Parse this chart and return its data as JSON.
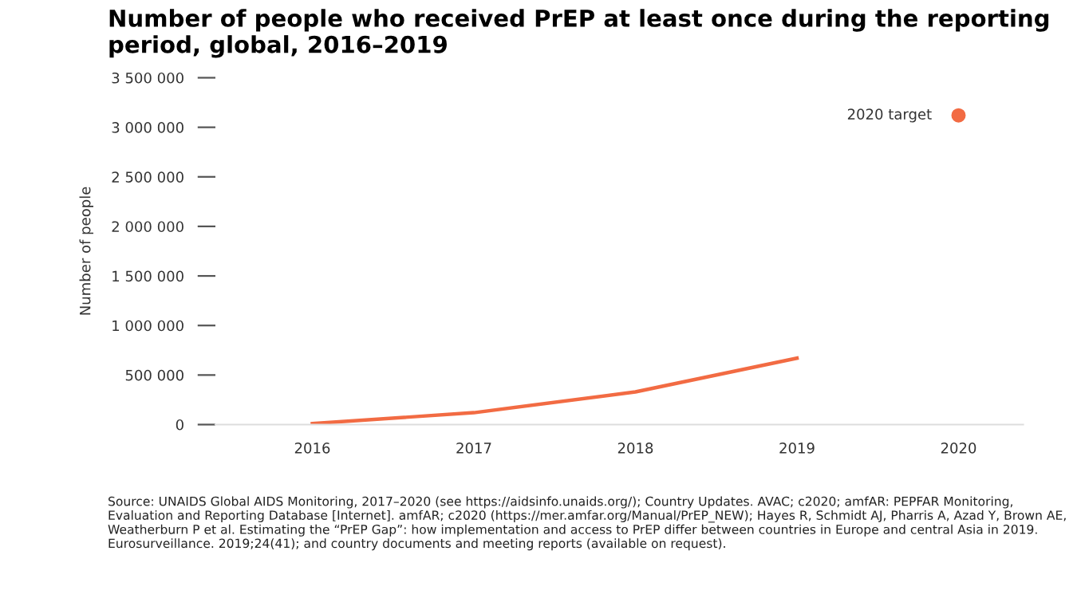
{
  "chart_data": {
    "type": "line",
    "title": "Number of people who received PrEP at least once during the reporting period, global, 2016–2019",
    "ylabel": "Number of people",
    "categories": [
      "2016",
      "2017",
      "2018",
      "2019",
      "2020"
    ],
    "series": [
      {
        "color": "#f26b43",
        "values": [
          10000,
          120000,
          330000,
          670000,
          null
        ]
      },
      {
        "type": "scatter",
        "marker": "circle",
        "color": "#f26b43",
        "values": [
          null,
          null,
          null,
          null,
          3120000
        ]
      }
    ],
    "ylim": [
      0,
      3500000
    ],
    "yticks": [
      0,
      {
        "value": 500000,
        "label": "500 000"
      },
      {
        "value": 1000000,
        "label": "1 000 000"
      },
      {
        "value": 1500000,
        "label": "1 500 000"
      },
      {
        "value": 2000000,
        "label": "2 000 000"
      },
      {
        "value": 2500000,
        "label": "2 500 000"
      },
      {
        "value": 3000000,
        "label": "3 000 000"
      },
      {
        "value": 3500000,
        "label": "3 500 000"
      }
    ],
    "grid": false,
    "legend": false,
    "annotations": [
      {
        "text": "2020 target",
        "x": "2020",
        "y": 3120000
      },
      "Source: UNAIDS Global AIDS Monitoring, 2017–2020 (see https://aidsinfo.unaids.org/); Country Updates. AVAC; c2020; amfAR: PEPFAR Monitoring, Evaluation and Reporting Database [Internet]. amfAR; c2020 (https://mer.amfar.org/Manual/PrEP_NEW); Hayes R, Schmidt AJ, Pharris A, Azad Y, Brown AE, Weatherburn P et al. Estimating the “PrEP Gap”: how implementation and access to PrEP differ between countries in Europe and central Asia in 2019. Eurosurveillance. 2019;24(41); and country documents and meeting reports (available on request)."
    ]
  }
}
